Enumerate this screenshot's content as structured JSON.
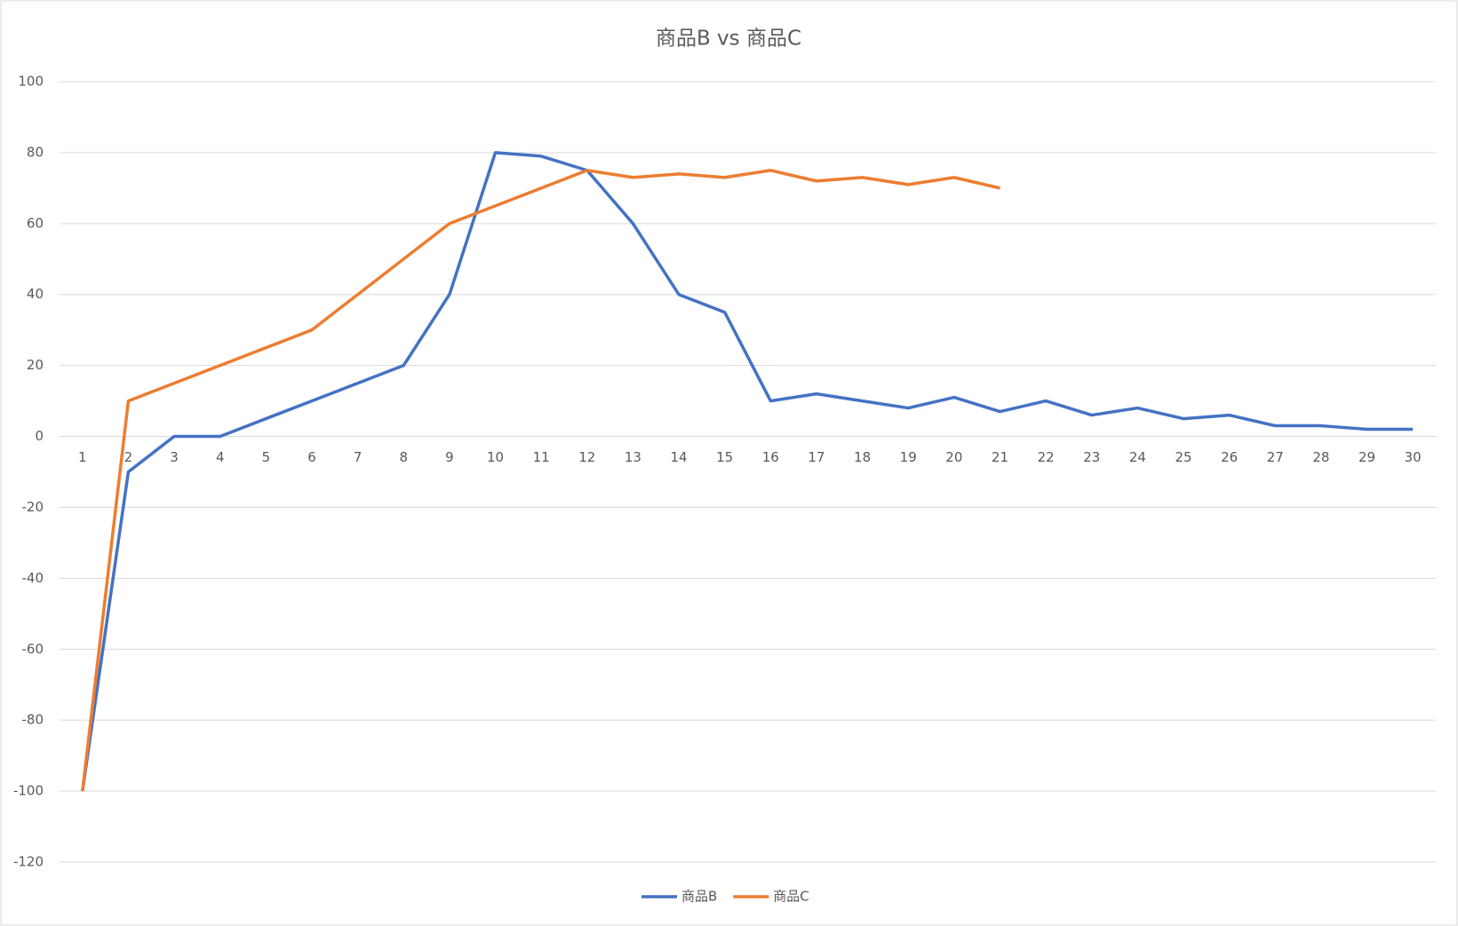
{
  "chart_data": {
    "type": "line",
    "title": "商品B vs 商品C",
    "categories": [
      1,
      2,
      3,
      4,
      5,
      6,
      7,
      8,
      9,
      10,
      11,
      12,
      13,
      14,
      15,
      16,
      17,
      18,
      19,
      20,
      21,
      22,
      23,
      24,
      25,
      26,
      27,
      28,
      29,
      30
    ],
    "series": [
      {
        "name": "商品B",
        "color": "#4472c4",
        "values": [
          -100,
          -10,
          0,
          0,
          5,
          10,
          15,
          20,
          40,
          80,
          79,
          75,
          60,
          40,
          35,
          10,
          12,
          10,
          8,
          11,
          7,
          10,
          6,
          8,
          5,
          6,
          3,
          3,
          2,
          2
        ]
      },
      {
        "name": "商品C",
        "color": "#ed7d31",
        "values": [
          -100,
          10,
          15,
          20,
          25,
          30,
          40,
          50,
          60,
          65,
          70,
          75,
          73,
          74,
          73,
          75,
          72,
          73,
          71,
          73,
          70,
          null,
          null,
          null,
          null,
          null,
          null,
          null,
          null,
          null
        ]
      }
    ],
    "ylim": [
      -120,
      100
    ],
    "yticks": [
      -120,
      -100,
      -80,
      -60,
      -40,
      -20,
      0,
      20,
      40,
      60,
      80,
      100
    ],
    "grid": true,
    "legend": "bottom"
  }
}
